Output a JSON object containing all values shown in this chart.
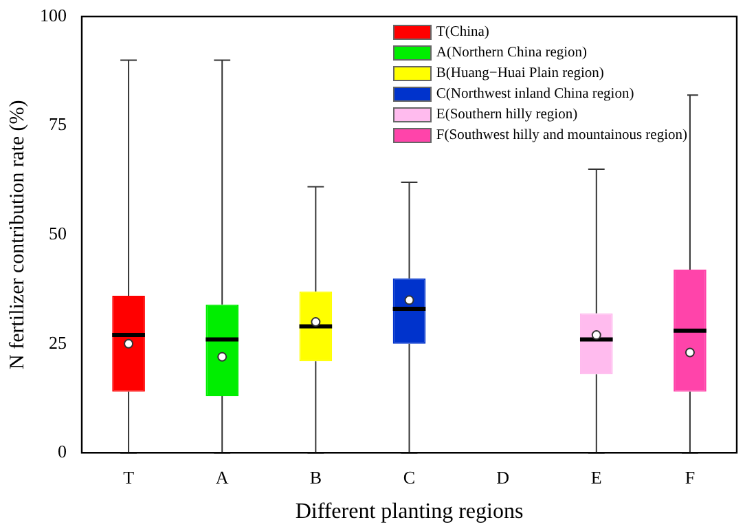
{
  "chart_data": {
    "type": "box",
    "xlabel": "Different planting regions",
    "ylabel": "N fertilizer contribution rate (%)",
    "categories": [
      "T",
      "A",
      "B",
      "C",
      "D",
      "E",
      "F"
    ],
    "ylim": [
      0,
      100
    ],
    "yticks": [
      0,
      25,
      50,
      75,
      100
    ],
    "grid": false,
    "legend": "top right",
    "series": [
      {
        "name": "T(China)",
        "color": "#ff0000",
        "boxes": [
          {
            "low": 0,
            "q1": 14,
            "median": 27,
            "q3": 36,
            "high": 90,
            "mean": 25
          },
          null,
          null,
          null,
          null,
          null,
          null
        ]
      },
      {
        "name": "A(Northern China region)",
        "color": "#00ee00",
        "boxes": [
          null,
          {
            "low": 0,
            "q1": 13,
            "median": 26,
            "q3": 34,
            "high": 90,
            "mean": 22
          },
          null,
          null,
          null,
          null,
          null
        ]
      },
      {
        "name": "B(Huang−Huai Plain region)",
        "color": "#ffff00",
        "boxes": [
          null,
          null,
          {
            "low": 0,
            "q1": 21,
            "median": 29,
            "q3": 37,
            "high": 61,
            "mean": 30
          },
          null,
          null,
          null,
          null
        ]
      },
      {
        "name": "C(Northwest inland China region)",
        "color": "#0033cc",
        "boxes": [
          null,
          null,
          null,
          {
            "low": 0,
            "q1": 25,
            "median": 33,
            "q3": 40,
            "high": 62,
            "mean": 35
          },
          null,
          null,
          null
        ]
      },
      {
        "name": "E(Southern hilly region)",
        "color": "#ffbbee",
        "boxes": [
          null,
          null,
          null,
          null,
          null,
          {
            "low": 0,
            "q1": 18,
            "median": 26,
            "q3": 32,
            "high": 65,
            "mean": 27
          },
          null
        ]
      },
      {
        "name": "F(Southwest hilly and mountainous region)",
        "color": "#ff44aa",
        "boxes": [
          null,
          null,
          null,
          null,
          null,
          null,
          {
            "low": 0,
            "q1": 14,
            "median": 28,
            "q3": 42,
            "high": 82,
            "mean": 23
          }
        ]
      }
    ]
  }
}
